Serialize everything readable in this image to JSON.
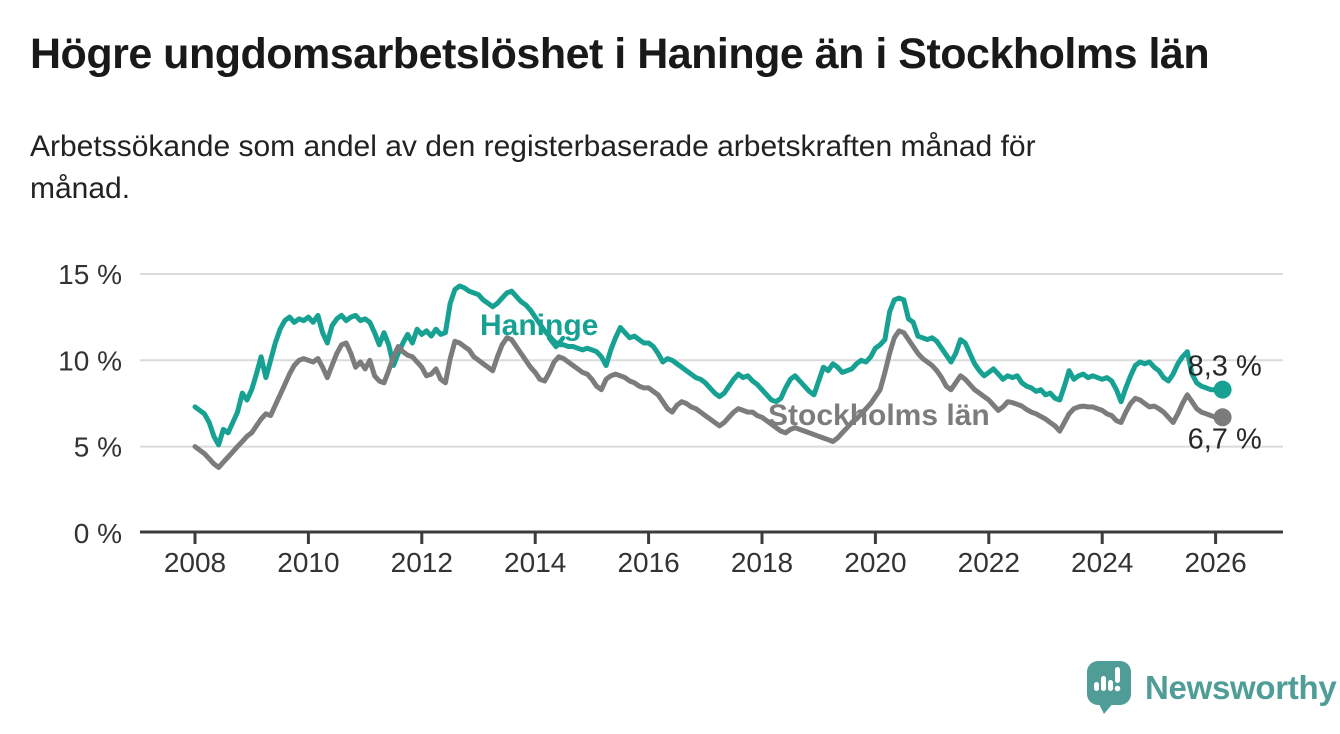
{
  "title": "Högre ungdomsarbetslöshet i Haninge än i Stockholms län",
  "subtitle_lines": [
    "Arbetssökande som andel av den registerbaserade arbetskraften månad för",
    "månad."
  ],
  "branding": {
    "logo_text": "Newsworthy",
    "logo_color": "#4F9D96"
  },
  "chart_data": {
    "type": "line",
    "title": "Högre ungdomsarbetslöshet i Haninge än i Stockholms län",
    "subtitle": "Arbetssökande som andel av den registerbaserade arbetskraften månad för månad.",
    "unit": "%",
    "frequency": "monthly",
    "x_start": "2008-01",
    "x_end": "2026-01",
    "grid": true,
    "ylim": [
      0,
      15
    ],
    "y_ticks": [
      {
        "value": 0,
        "label": "0 %"
      },
      {
        "value": 5,
        "label": "5 %"
      },
      {
        "value": 10,
        "label": "10 %"
      },
      {
        "value": 15,
        "label": "15 %"
      }
    ],
    "x_ticks": [
      {
        "year": 2008,
        "label": "2008"
      },
      {
        "year": 2010,
        "label": "2010"
      },
      {
        "year": 2012,
        "label": "2012"
      },
      {
        "year": 2014,
        "label": "2014"
      },
      {
        "year": 2016,
        "label": "2016"
      },
      {
        "year": 2018,
        "label": "2018"
      },
      {
        "year": 2020,
        "label": "2020"
      },
      {
        "year": 2022,
        "label": "2022"
      },
      {
        "year": 2024,
        "label": "2024"
      },
      {
        "year": 2026,
        "label": "2026"
      }
    ],
    "series": [
      {
        "name": "Haninge",
        "color": "#16A193",
        "end_label": "8,3 %",
        "last_value": 8.3,
        "values": [
          7.3,
          7.1,
          6.9,
          6.4,
          5.6,
          5.1,
          6.0,
          5.8,
          6.4,
          7.0,
          8.1,
          7.7,
          8.3,
          9.2,
          10.2,
          9.0,
          10.0,
          11.0,
          11.8,
          12.3,
          12.5,
          12.2,
          12.4,
          12.3,
          12.5,
          12.2,
          12.6,
          11.6,
          11.0,
          12.0,
          12.4,
          12.6,
          12.3,
          12.5,
          12.6,
          12.3,
          12.4,
          12.2,
          11.6,
          10.9,
          11.6,
          10.9,
          9.7,
          10.4,
          11.0,
          11.5,
          11.0,
          11.8,
          11.5,
          11.7,
          11.4,
          11.8,
          11.5,
          11.6,
          13.3,
          14.1,
          14.3,
          14.2,
          14.0,
          13.9,
          13.8,
          13.5,
          13.3,
          13.1,
          13.3,
          13.6,
          13.9,
          14.0,
          13.7,
          13.4,
          13.2,
          12.9,
          12.5,
          12.1,
          11.7,
          11.4,
          11.1,
          10.9,
          10.9,
          10.8,
          10.8,
          10.7,
          10.6,
          10.7,
          10.6,
          10.5,
          10.2,
          9.7,
          10.6,
          11.3,
          11.9,
          11.6,
          11.3,
          11.4,
          11.2,
          11.0,
          11.0,
          10.8,
          10.4,
          9.9,
          10.1,
          10.0,
          9.8,
          9.6,
          9.4,
          9.2,
          9.0,
          8.9,
          8.7,
          8.4,
          8.1,
          7.9,
          8.1,
          8.5,
          8.9,
          9.2,
          9.0,
          9.1,
          8.8,
          8.6,
          8.3,
          8.0,
          7.7,
          7.6,
          7.8,
          8.4,
          8.9,
          9.1,
          8.8,
          8.5,
          8.2,
          8.0,
          8.8,
          9.6,
          9.4,
          9.8,
          9.6,
          9.3,
          9.4,
          9.5,
          9.8,
          10.0,
          9.9,
          10.2,
          10.7,
          10.9,
          11.2,
          12.8,
          13.5,
          13.6,
          13.5,
          12.4,
          12.2,
          11.4,
          11.3,
          11.2,
          11.3,
          11.1,
          10.7,
          10.3,
          9.9,
          10.4,
          11.2,
          11.0,
          10.4,
          9.8,
          9.4,
          9.1,
          9.3,
          9.5,
          9.2,
          8.9,
          9.1,
          9.0,
          9.1,
          8.7,
          8.5,
          8.4,
          8.2,
          8.3,
          8.0,
          8.1,
          7.8,
          7.7,
          8.5,
          9.4,
          8.9,
          9.1,
          9.2,
          9.0,
          9.1,
          9.0,
          8.9,
          9.0,
          8.8,
          8.3,
          7.6,
          8.4,
          9.1,
          9.7,
          9.9,
          9.8,
          9.9,
          9.6,
          9.4,
          9.0,
          8.8,
          9.2,
          9.8,
          10.2,
          10.5,
          9.2,
          8.7,
          8.5,
          8.4,
          8.3,
          8.3
        ]
      },
      {
        "name": "Stockholms län",
        "color": "#7C7C7C",
        "end_label": "6,7 %",
        "last_value": 6.7,
        "values": [
          5.0,
          4.8,
          4.6,
          4.3,
          4.0,
          3.8,
          4.1,
          4.4,
          4.7,
          5.0,
          5.3,
          5.6,
          5.8,
          6.2,
          6.6,
          6.9,
          6.8,
          7.4,
          8.0,
          8.6,
          9.2,
          9.7,
          10.0,
          10.1,
          10.0,
          9.9,
          10.1,
          9.6,
          9.0,
          9.7,
          10.4,
          10.9,
          11.0,
          10.4,
          9.6,
          9.9,
          9.5,
          10.0,
          9.1,
          8.8,
          8.7,
          9.4,
          10.2,
          10.8,
          10.5,
          10.3,
          10.2,
          9.9,
          9.6,
          9.1,
          9.2,
          9.5,
          8.9,
          8.7,
          10.1,
          11.1,
          11.0,
          10.8,
          10.6,
          10.2,
          10.0,
          9.8,
          9.6,
          9.4,
          10.2,
          10.9,
          11.3,
          11.2,
          10.8,
          10.4,
          10.0,
          9.6,
          9.3,
          8.9,
          8.8,
          9.3,
          9.9,
          10.2,
          10.1,
          9.9,
          9.7,
          9.5,
          9.3,
          9.2,
          8.9,
          8.5,
          8.3,
          8.9,
          9.1,
          9.2,
          9.1,
          9.0,
          8.8,
          8.7,
          8.5,
          8.4,
          8.4,
          8.2,
          8.0,
          7.6,
          7.2,
          7.0,
          7.4,
          7.6,
          7.5,
          7.3,
          7.2,
          7.0,
          6.8,
          6.6,
          6.4,
          6.2,
          6.4,
          6.7,
          7.0,
          7.2,
          7.1,
          7.0,
          7.0,
          6.8,
          6.7,
          6.5,
          6.3,
          6.1,
          5.9,
          5.8,
          6.0,
          6.1,
          6.0,
          5.9,
          5.8,
          5.7,
          5.6,
          5.5,
          5.4,
          5.3,
          5.5,
          5.8,
          6.1,
          6.4,
          6.6,
          6.9,
          7.2,
          7.5,
          7.9,
          8.3,
          9.3,
          10.4,
          11.3,
          11.7,
          11.6,
          11.2,
          10.8,
          10.4,
          10.1,
          9.9,
          9.7,
          9.4,
          9.0,
          8.5,
          8.3,
          8.7,
          9.1,
          8.9,
          8.6,
          8.3,
          8.1,
          7.9,
          7.7,
          7.4,
          7.1,
          7.3,
          7.6,
          7.55,
          7.45,
          7.35,
          7.15,
          7.0,
          6.9,
          6.75,
          6.6,
          6.4,
          6.2,
          5.9,
          6.4,
          6.9,
          7.2,
          7.3,
          7.35,
          7.3,
          7.3,
          7.2,
          7.1,
          6.9,
          6.8,
          6.5,
          6.4,
          7.0,
          7.5,
          7.8,
          7.7,
          7.5,
          7.3,
          7.35,
          7.2,
          7.0,
          6.7,
          6.4,
          6.9,
          7.5,
          8.0,
          7.6,
          7.2,
          7.0,
          6.9,
          6.8,
          6.7
        ]
      }
    ],
    "colors": {
      "grid": "#DBDBDB",
      "axis": "#3C3C3C",
      "tick_text": "#333333",
      "value_label_text": "#282828"
    }
  }
}
